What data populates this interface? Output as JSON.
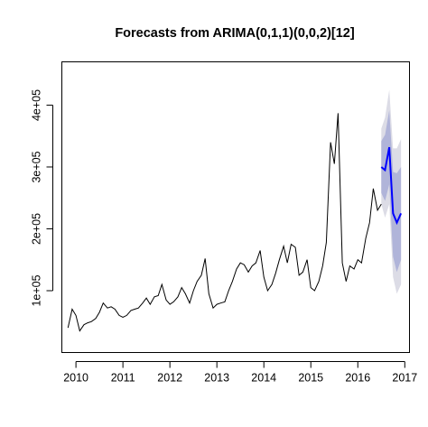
{
  "chart_data": {
    "type": "line",
    "title": "Forecasts from ARIMA(0,1,1)(0,0,2)[12]",
    "xlabel": "",
    "ylabel": "",
    "xlim": [
      2009.7,
      2017.1
    ],
    "ylim": [
      0,
      470000
    ],
    "x_ticks": [
      2010,
      2011,
      2012,
      2013,
      2014,
      2015,
      2016,
      2017
    ],
    "x_tick_labels": [
      "2010",
      "2011",
      "2012",
      "2013",
      "2014",
      "2015",
      "2016",
      "2017"
    ],
    "y_ticks": [
      100000,
      200000,
      300000,
      400000
    ],
    "y_tick_labels": [
      "1e+05",
      "2e+05",
      "3e+05",
      "4e+05"
    ],
    "grid": false,
    "legend": "none",
    "colors": {
      "observed": "#000000",
      "forecast": "#0000ff",
      "band80": "#b0b4d9",
      "band95": "#dcdce6"
    },
    "observed": {
      "x": [
        2009.83,
        2009.92,
        2010.0,
        2010.08,
        2010.17,
        2010.25,
        2010.33,
        2010.42,
        2010.5,
        2010.58,
        2010.67,
        2010.75,
        2010.83,
        2010.92,
        2011.0,
        2011.08,
        2011.17,
        2011.25,
        2011.33,
        2011.42,
        2011.5,
        2011.58,
        2011.67,
        2011.75,
        2011.83,
        2011.92,
        2012.0,
        2012.08,
        2012.17,
        2012.25,
        2012.33,
        2012.42,
        2012.5,
        2012.58,
        2012.67,
        2012.75,
        2012.83,
        2012.92,
        2013.0,
        2013.08,
        2013.17,
        2013.25,
        2013.33,
        2013.42,
        2013.5,
        2013.58,
        2013.67,
        2013.75,
        2013.83,
        2013.92,
        2014.0,
        2014.08,
        2014.17,
        2014.25,
        2014.33,
        2014.42,
        2014.5,
        2014.58,
        2014.67,
        2014.75,
        2014.83,
        2014.92,
        2015.0,
        2015.08,
        2015.17,
        2015.25,
        2015.33,
        2015.42,
        2015.5,
        2015.58,
        2015.67,
        2015.75,
        2015.83,
        2015.92,
        2016.0,
        2016.08,
        2016.17,
        2016.25,
        2016.33,
        2016.42,
        2016.5
      ],
      "y": [
        40000,
        70000,
        60000,
        35000,
        45000,
        48000,
        50000,
        55000,
        65000,
        80000,
        72000,
        74000,
        70000,
        60000,
        57000,
        60000,
        68000,
        70000,
        72000,
        80000,
        88000,
        78000,
        90000,
        92000,
        110000,
        85000,
        78000,
        82000,
        90000,
        105000,
        95000,
        80000,
        100000,
        115000,
        125000,
        152000,
        95000,
        72000,
        78000,
        80000,
        82000,
        100000,
        115000,
        135000,
        145000,
        142000,
        130000,
        140000,
        145000,
        165000,
        122000,
        100000,
        110000,
        128000,
        150000,
        172000,
        145000,
        175000,
        170000,
        125000,
        130000,
        150000,
        105000,
        100000,
        115000,
        140000,
        178000,
        340000,
        305000,
        387000,
        145000,
        115000,
        140000,
        135000,
        150000,
        145000,
        185000,
        210000,
        265000,
        230000,
        240000
      ]
    },
    "forecast": {
      "x": [
        2016.5,
        2016.58,
        2016.67,
        2016.75,
        2016.83,
        2016.92
      ],
      "y": [
        300000,
        295000,
        332000,
        225000,
        210000,
        225000
      ]
    },
    "band80": {
      "x": [
        2016.5,
        2016.58,
        2016.67,
        2016.75,
        2016.83,
        2016.92
      ],
      "lo": [
        258000,
        245000,
        272000,
        155000,
        130000,
        150000
      ],
      "hi": [
        342000,
        352000,
        392000,
        292000,
        290000,
        300000
      ]
    },
    "band95": {
      "x": [
        2016.5,
        2016.58,
        2016.67,
        2016.75,
        2016.83,
        2016.92
      ],
      "lo": [
        240000,
        218000,
        240000,
        122000,
        95000,
        110000
      ],
      "hi": [
        362000,
        380000,
        425000,
        330000,
        330000,
        345000
      ]
    }
  }
}
